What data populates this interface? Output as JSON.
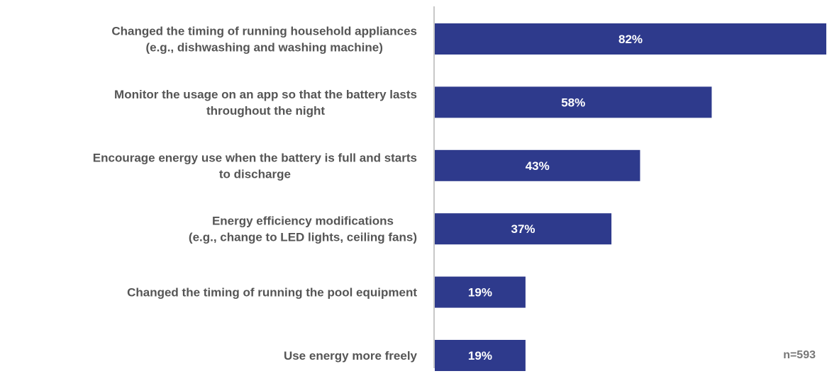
{
  "chart_data": {
    "type": "bar",
    "orientation": "horizontal",
    "categories": [
      [
        "Changed the timing of running household appliances",
        "(e.g., dishwashing and washing machine)"
      ],
      [
        "Monitor the usage on an app so that the battery lasts",
        "throughout the night"
      ],
      [
        "Encourage energy use when the battery is full and starts",
        "to discharge"
      ],
      [
        "Energy efficiency modifications",
        "(e.g., change to LED lights, ceiling fans)"
      ],
      [
        "Changed the timing of running the pool equipment"
      ],
      [
        "Use energy more freely"
      ]
    ],
    "values": [
      82,
      58,
      43,
      37,
      19,
      19
    ],
    "value_labels": [
      "82%",
      "58%",
      "43%",
      "37%",
      "19%",
      "19%"
    ],
    "xlim": [
      0,
      82
    ],
    "bar_color": "#2e3a8c",
    "axis_color": "#c8c8c8",
    "grid": false,
    "legend": "none",
    "note": "n=593"
  }
}
